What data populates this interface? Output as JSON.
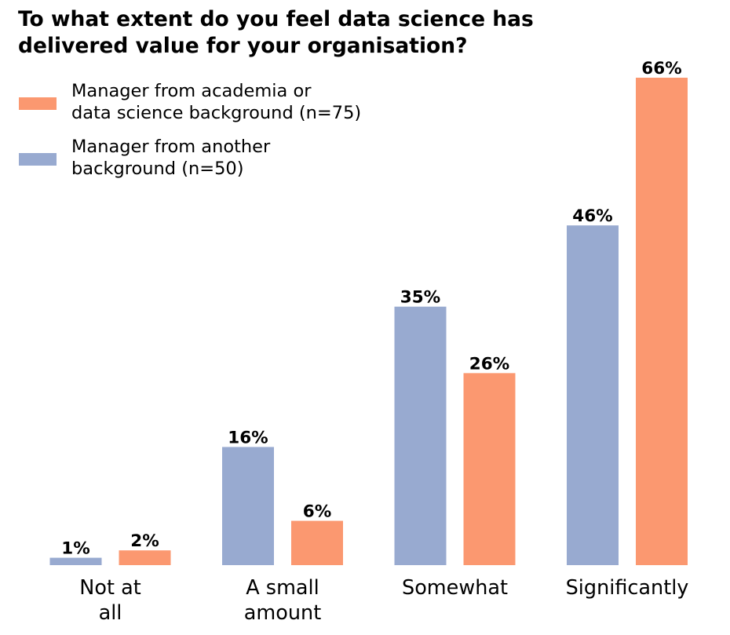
{
  "chart_data": {
    "type": "bar",
    "title": "To what extent do you feel data science has\ndelivered value for your organisation?",
    "xlabel": "",
    "ylabel": "",
    "ylim": [
      0,
      66
    ],
    "grid": false,
    "legend_position": "top-left",
    "categories": [
      "Not at\nall",
      "A small\namount",
      "Somewhat",
      "Significantly"
    ],
    "series": [
      {
        "name": "Manager from another\nbackground (n=50)",
        "color": "#98aad0",
        "values": [
          1,
          16,
          35,
          46
        ],
        "labels": [
          "1%",
          "16%",
          "35%",
          "46%"
        ]
      },
      {
        "name": "Manager from academia or\ndata science background (n=75)",
        "color": "#fb9870",
        "values": [
          2,
          6,
          26,
          66
        ],
        "labels": [
          "2%",
          "6%",
          "26%",
          "66%"
        ]
      }
    ],
    "legend_order": [
      1,
      0
    ]
  }
}
